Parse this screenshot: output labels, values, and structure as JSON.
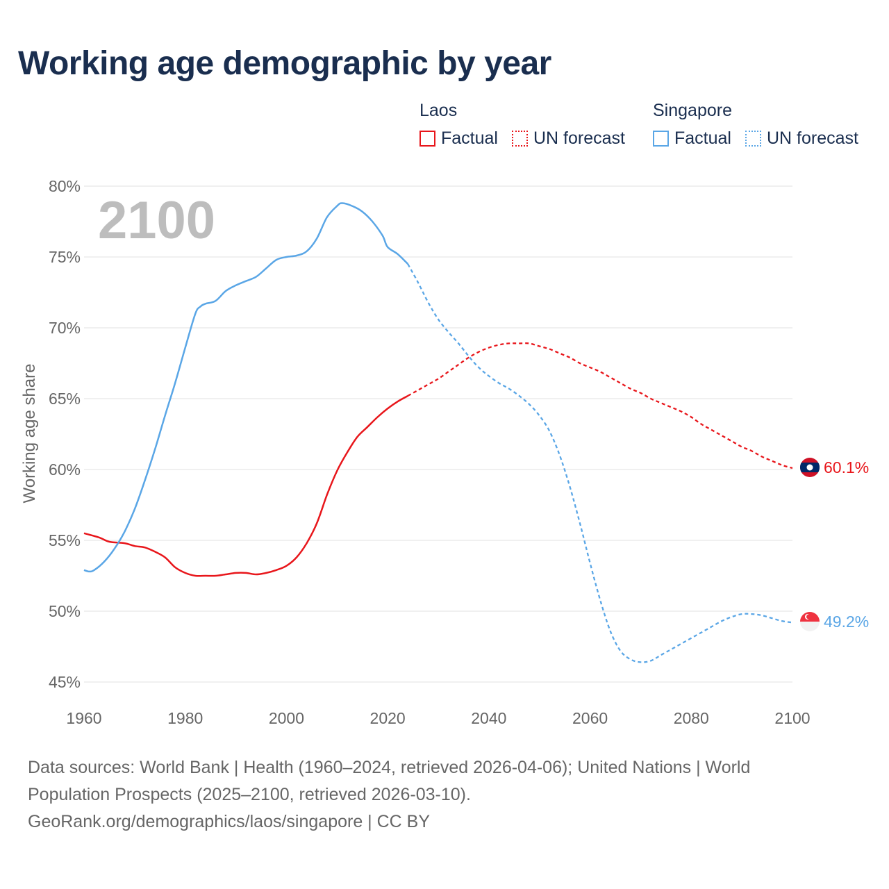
{
  "title": "Working age demographic by year",
  "legend": {
    "groups": [
      {
        "name": "Laos",
        "color": "#e8161b",
        "items": [
          {
            "label": "Factual",
            "style": "solid"
          },
          {
            "label": "UN forecast",
            "style": "dotted"
          }
        ]
      },
      {
        "name": "Singapore",
        "color": "#5aa6e6",
        "items": [
          {
            "label": "Factual",
            "style": "solid"
          },
          {
            "label": "UN forecast",
            "style": "dotted"
          }
        ]
      }
    ]
  },
  "year_watermark": "2100",
  "end_labels": {
    "laos": "60.1%",
    "singapore": "49.2%"
  },
  "footer": {
    "sources": "Data sources: World Bank | Health (1960–2024, retrieved 2026-04-06); United Nations | World Population Prospects (2025–2100, retrieved 2026-03-10).",
    "credit": "GeoRank.org/demographics/laos/singapore | CC BY"
  },
  "chart_data": {
    "type": "line",
    "title": "Working age demographic by year",
    "xlabel": "",
    "ylabel": "Working age share",
    "xlim": [
      1960,
      2100
    ],
    "ylim": [
      45,
      80
    ],
    "x_ticks": [
      1960,
      1980,
      2000,
      2020,
      2040,
      2060,
      2080,
      2100
    ],
    "y_ticks": [
      45,
      50,
      55,
      60,
      65,
      70,
      75,
      80
    ],
    "y_tick_labels": [
      "45%",
      "50%",
      "55%",
      "60%",
      "65%",
      "70%",
      "75%",
      "80%"
    ],
    "grid": true,
    "factual_end_year": 2024,
    "series": [
      {
        "name": "Laos",
        "color": "#e8161b",
        "end_label": "60.1%",
        "points": [
          [
            1960,
            55.5
          ],
          [
            1963,
            55.2
          ],
          [
            1965,
            54.9
          ],
          [
            1968,
            54.8
          ],
          [
            1970,
            54.6
          ],
          [
            1972,
            54.5
          ],
          [
            1974,
            54.2
          ],
          [
            1976,
            53.8
          ],
          [
            1978,
            53.1
          ],
          [
            1980,
            52.7
          ],
          [
            1982,
            52.5
          ],
          [
            1984,
            52.5
          ],
          [
            1986,
            52.5
          ],
          [
            1988,
            52.6
          ],
          [
            1990,
            52.7
          ],
          [
            1992,
            52.7
          ],
          [
            1994,
            52.6
          ],
          [
            1996,
            52.7
          ],
          [
            1998,
            52.9
          ],
          [
            2000,
            53.2
          ],
          [
            2002,
            53.8
          ],
          [
            2004,
            54.8
          ],
          [
            2006,
            56.2
          ],
          [
            2008,
            58.2
          ],
          [
            2010,
            59.9
          ],
          [
            2012,
            61.2
          ],
          [
            2014,
            62.3
          ],
          [
            2016,
            63.0
          ],
          [
            2018,
            63.7
          ],
          [
            2020,
            64.3
          ],
          [
            2022,
            64.8
          ],
          [
            2024,
            65.2
          ],
          [
            2026,
            65.6
          ],
          [
            2028,
            66.0
          ],
          [
            2030,
            66.4
          ],
          [
            2032,
            66.9
          ],
          [
            2034,
            67.4
          ],
          [
            2036,
            67.9
          ],
          [
            2038,
            68.3
          ],
          [
            2040,
            68.6
          ],
          [
            2042,
            68.8
          ],
          [
            2044,
            68.9
          ],
          [
            2046,
            68.9
          ],
          [
            2048,
            68.9
          ],
          [
            2050,
            68.7
          ],
          [
            2052,
            68.5
          ],
          [
            2054,
            68.2
          ],
          [
            2056,
            67.9
          ],
          [
            2058,
            67.5
          ],
          [
            2060,
            67.2
          ],
          [
            2062,
            66.9
          ],
          [
            2064,
            66.5
          ],
          [
            2066,
            66.1
          ],
          [
            2068,
            65.7
          ],
          [
            2070,
            65.4
          ],
          [
            2072,
            65.0
          ],
          [
            2074,
            64.7
          ],
          [
            2076,
            64.4
          ],
          [
            2078,
            64.1
          ],
          [
            2080,
            63.7
          ],
          [
            2082,
            63.2
          ],
          [
            2084,
            62.8
          ],
          [
            2086,
            62.4
          ],
          [
            2088,
            62.0
          ],
          [
            2090,
            61.6
          ],
          [
            2092,
            61.3
          ],
          [
            2094,
            60.9
          ],
          [
            2096,
            60.6
          ],
          [
            2098,
            60.3
          ],
          [
            2100,
            60.1
          ]
        ]
      },
      {
        "name": "Singapore",
        "color": "#5aa6e6",
        "end_label": "49.2%",
        "points": [
          [
            1960,
            52.9
          ],
          [
            1961,
            52.8
          ],
          [
            1962,
            52.9
          ],
          [
            1964,
            53.5
          ],
          [
            1966,
            54.4
          ],
          [
            1968,
            55.6
          ],
          [
            1970,
            57.2
          ],
          [
            1972,
            59.2
          ],
          [
            1974,
            61.4
          ],
          [
            1976,
            63.8
          ],
          [
            1978,
            66.1
          ],
          [
            1980,
            68.6
          ],
          [
            1982,
            71.0
          ],
          [
            1983,
            71.5
          ],
          [
            1984,
            71.7
          ],
          [
            1986,
            71.9
          ],
          [
            1988,
            72.6
          ],
          [
            1990,
            73.0
          ],
          [
            1992,
            73.3
          ],
          [
            1994,
            73.6
          ],
          [
            1996,
            74.2
          ],
          [
            1998,
            74.8
          ],
          [
            2000,
            75.0
          ],
          [
            2002,
            75.1
          ],
          [
            2004,
            75.4
          ],
          [
            2006,
            76.3
          ],
          [
            2008,
            77.8
          ],
          [
            2010,
            78.6
          ],
          [
            2011,
            78.8
          ],
          [
            2013,
            78.6
          ],
          [
            2015,
            78.2
          ],
          [
            2017,
            77.5
          ],
          [
            2019,
            76.5
          ],
          [
            2020,
            75.7
          ],
          [
            2022,
            75.2
          ],
          [
            2024,
            74.5
          ],
          [
            2026,
            73.2
          ],
          [
            2028,
            71.8
          ],
          [
            2030,
            70.6
          ],
          [
            2032,
            69.7
          ],
          [
            2034,
            68.9
          ],
          [
            2036,
            68.0
          ],
          [
            2038,
            67.2
          ],
          [
            2040,
            66.6
          ],
          [
            2042,
            66.1
          ],
          [
            2044,
            65.7
          ],
          [
            2046,
            65.2
          ],
          [
            2048,
            64.6
          ],
          [
            2050,
            63.8
          ],
          [
            2052,
            62.7
          ],
          [
            2054,
            61.0
          ],
          [
            2056,
            58.8
          ],
          [
            2058,
            56.2
          ],
          [
            2060,
            53.4
          ],
          [
            2062,
            50.8
          ],
          [
            2064,
            48.6
          ],
          [
            2066,
            47.2
          ],
          [
            2068,
            46.6
          ],
          [
            2070,
            46.4
          ],
          [
            2072,
            46.5
          ],
          [
            2074,
            46.9
          ],
          [
            2076,
            47.3
          ],
          [
            2078,
            47.7
          ],
          [
            2080,
            48.1
          ],
          [
            2082,
            48.5
          ],
          [
            2084,
            48.9
          ],
          [
            2086,
            49.3
          ],
          [
            2088,
            49.6
          ],
          [
            2090,
            49.8
          ],
          [
            2092,
            49.8
          ],
          [
            2094,
            49.7
          ],
          [
            2096,
            49.5
          ],
          [
            2098,
            49.3
          ],
          [
            2100,
            49.2
          ]
        ]
      }
    ]
  }
}
